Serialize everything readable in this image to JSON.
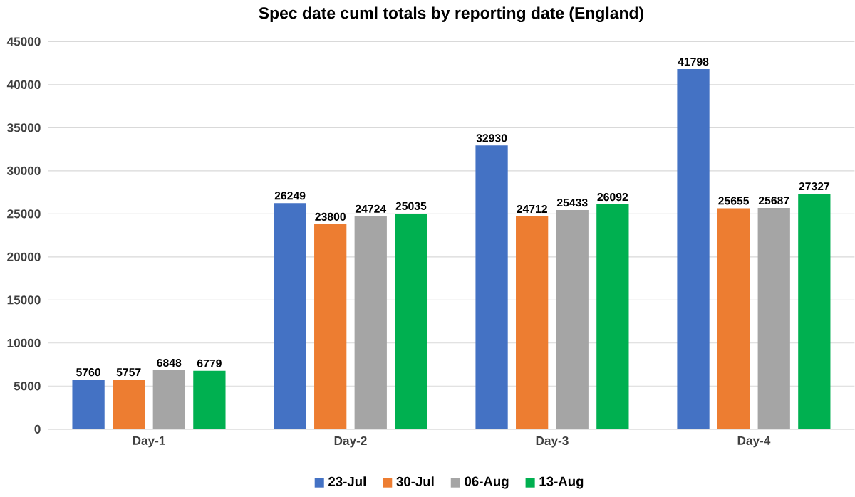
{
  "chart_data": {
    "type": "bar",
    "title": "Spec date cuml totals by reporting date (England)",
    "categories": [
      "Day-1",
      "Day-2",
      "Day-3",
      "Day-4"
    ],
    "series": [
      {
        "name": "23-Jul",
        "color": "#4472c4",
        "values": [
          5760,
          26249,
          32930,
          41798
        ]
      },
      {
        "name": "30-Jul",
        "color": "#ed7d31",
        "values": [
          5757,
          23800,
          24712,
          25655
        ]
      },
      {
        "name": "06-Aug",
        "color": "#a5a5a5",
        "values": [
          6848,
          24724,
          25433,
          25687
        ]
      },
      {
        "name": "13-Aug",
        "color": "#00b050",
        "values": [
          6779,
          25035,
          26092,
          27327
        ]
      }
    ],
    "ylim": [
      0,
      45000
    ],
    "yticks": [
      0,
      5000,
      10000,
      15000,
      20000,
      25000,
      30000,
      35000,
      40000,
      45000
    ],
    "grid": "y",
    "legend": "bottom",
    "data_labels": true
  }
}
